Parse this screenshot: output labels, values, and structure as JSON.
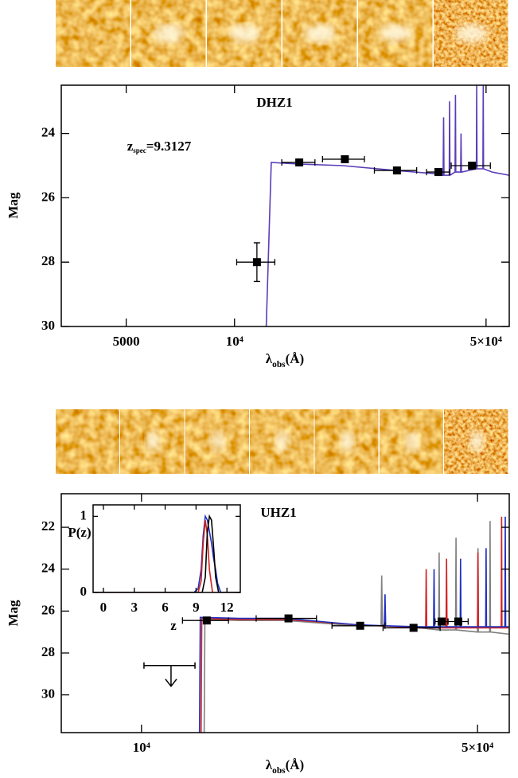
{
  "chart_data": [
    {
      "type": "errorbar",
      "title": "DHZ1",
      "annotation": {
        "base": "z",
        "sub": "spec",
        "rest": "=9.3127"
      },
      "ylabel": "Mag",
      "xlabel": {
        "base": "λ",
        "sub": "obs",
        "rest": "(Å)"
      },
      "xscale": "log",
      "xlim": [
        3300,
        58000
      ],
      "ylim": [
        30,
        22.5
      ],
      "xticks": [
        5000,
        {
          "value": 10000,
          "label": "10⁴"
        },
        {
          "value": 50000,
          "label": "5×10⁴"
        }
      ],
      "yticks": [
        24,
        26,
        28,
        30
      ],
      "points": {
        "color": "#000000",
        "x": [
          11540,
          15130,
          20260,
          28270,
          36860,
          45700
        ],
        "values": [
          28.0,
          24.9,
          24.8,
          25.15,
          25.2,
          25.0
        ],
        "xerr": [
          1400,
          1600,
          2700,
          3800,
          2700,
          5700
        ],
        "yerr": [
          0.6,
          0.1,
          0.1,
          0.1,
          0.1,
          0.1
        ]
      },
      "series": [
        {
          "color": "#5a3db8",
          "x": [
            12250,
            12650,
            15000,
            20000,
            28000,
            36000,
            38000,
            38100,
            38200,
            39500,
            39600,
            39700,
            41000,
            41100,
            41200,
            42500,
            42600,
            42700,
            47000,
            47100,
            47200,
            49000,
            49100,
            49200,
            52000,
            58000
          ],
          "values": [
            30,
            24.9,
            24.95,
            25.0,
            25.15,
            25.25,
            25.3,
            23.5,
            25.3,
            25.3,
            23.0,
            25.3,
            25.2,
            22.8,
            25.2,
            25.2,
            24.0,
            25.2,
            25.1,
            22.5,
            25.1,
            25.1,
            22.5,
            25.1,
            25.2,
            25.3
          ]
        }
      ]
    },
    {
      "type": "errorbar",
      "title": "UHZ1",
      "ylabel": "Mag",
      "xlabel": {
        "base": "λ",
        "sub": "obs",
        "rest": "(Å)"
      },
      "xscale": "log",
      "xlim": [
        6810,
        58200
      ],
      "ylim": [
        31.8,
        20.4
      ],
      "xticks": [
        {
          "value": 10000,
          "label": "10⁴"
        },
        {
          "value": 50000,
          "label": "5×10⁴"
        }
      ],
      "yticks": [
        22,
        24,
        26,
        28,
        30
      ],
      "points": {
        "color": "#000000",
        "x": [
          13670,
          20220,
          28500,
          36800,
          42100,
          45600
        ],
        "values": [
          26.45,
          26.35,
          26.7,
          26.8,
          26.5,
          26.5
        ],
        "xerr": [
          1500,
          2900,
          3600,
          5000,
          1300,
          2200
        ],
        "yerr": [
          0.15,
          0.15,
          0.15,
          0.15,
          0.15,
          0.15
        ]
      },
      "upper_limits": {
        "x": [
          11520
        ],
        "values": [
          28.6
        ],
        "xerr": [
          1400
        ]
      },
      "series": [
        {
          "color": "#808080",
          "x": [
            13500,
            13550,
            16000,
            20000,
            28000,
            31500,
            31600,
            31700,
            38000,
            41500,
            41600,
            41700,
            45000,
            45100,
            45200,
            50000,
            50100,
            50200,
            53000,
            53100,
            53200,
            58000
          ],
          "values": [
            31.8,
            26.4,
            26.45,
            26.45,
            26.7,
            26.7,
            24.3,
            26.7,
            26.8,
            26.9,
            23.2,
            26.9,
            26.9,
            22.5,
            26.9,
            27.0,
            23.0,
            27.0,
            27.0,
            21.7,
            27.0,
            27.1
          ]
        },
        {
          "color": "#d42020",
          "x": [
            13300,
            13350,
            16000,
            20000,
            28000,
            38000,
            39000,
            39100,
            39200,
            43000,
            43100,
            43200,
            50000,
            50100,
            50200,
            56000,
            56100,
            56200,
            58000
          ],
          "values": [
            31.8,
            26.35,
            26.4,
            26.4,
            26.65,
            26.8,
            26.8,
            24.0,
            26.8,
            26.8,
            23.5,
            26.8,
            26.8,
            23.2,
            26.8,
            26.8,
            21.5,
            26.8,
            26.8
          ]
        },
        {
          "color": "#2030c0",
          "x": [
            13200,
            13250,
            16000,
            20000,
            28000,
            32000,
            32100,
            32200,
            38000,
            40500,
            40600,
            40700,
            46000,
            46100,
            46200,
            52000,
            52100,
            52200,
            57000,
            57100,
            57200,
            58000
          ],
          "values": [
            31.8,
            26.3,
            26.35,
            26.35,
            26.65,
            26.7,
            25.2,
            26.7,
            26.75,
            26.75,
            24.0,
            26.75,
            26.75,
            23.5,
            26.75,
            26.75,
            23.0,
            26.75,
            26.75,
            21.5,
            26.75,
            26.75
          ]
        }
      ]
    },
    {
      "type": "line",
      "ylabel": "P(z)",
      "xlabel": "z",
      "xlim": [
        -1,
        13.3
      ],
      "ylim": [
        0,
        1.15
      ],
      "xticks": [
        0,
        3,
        6,
        9,
        12
      ],
      "yticks": [
        0,
        1
      ],
      "series": [
        {
          "color": "#2030c0",
          "x": [
            -1,
            8.8,
            9.2,
            9.5,
            9.7,
            9.9,
            10.1,
            10.3,
            10.5,
            10.7,
            10.9,
            11.1,
            11.4,
            13.3
          ],
          "values": [
            0,
            0,
            0.05,
            0.3,
            0.75,
            1.0,
            0.95,
            0.8,
            0.65,
            0.45,
            0.3,
            0.12,
            0,
            0
          ]
        },
        {
          "color": "#d42020",
          "x": [
            -1,
            9.2,
            9.5,
            9.7,
            9.9,
            10.1,
            10.3,
            10.6,
            13.3
          ],
          "values": [
            0,
            0,
            0.15,
            0.65,
            0.95,
            0.75,
            0.3,
            0,
            0
          ]
        },
        {
          "color": "#000000",
          "x": [
            -1,
            9.6,
            9.9,
            10.1,
            10.3,
            10.5,
            10.7,
            10.9,
            11.2,
            13.3
          ],
          "values": [
            0,
            0,
            0.2,
            0.8,
            1.0,
            0.95,
            0.6,
            0.2,
            0,
            0
          ]
        }
      ]
    }
  ]
}
